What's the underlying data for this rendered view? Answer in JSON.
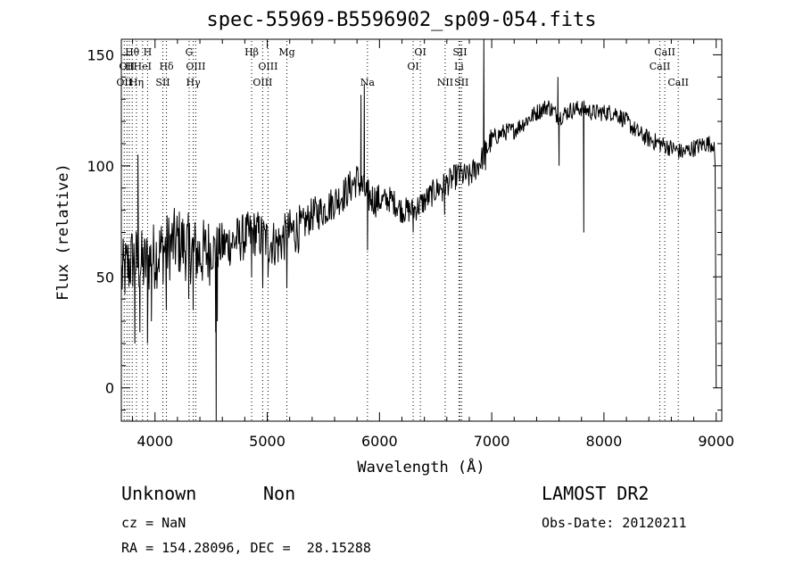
{
  "chart_data": {
    "type": "line",
    "title": "spec-55969-B5596902_sp09-054.fits",
    "xlabel": "Wavelength (Å)",
    "ylabel": "Flux (relative)",
    "xlim": [
      3700,
      9050
    ],
    "ylim": [
      -15,
      157
    ],
    "xticks": [
      4000,
      5000,
      6000,
      7000,
      8000,
      9000
    ],
    "yticks": [
      0,
      50,
      100,
      150
    ],
    "grid": false,
    "series_color": "#000000",
    "continuum": {
      "x": [
        3700,
        3800,
        3900,
        4000,
        4100,
        4200,
        4300,
        4400,
        4500,
        4600,
        4700,
        4800,
        4900,
        5000,
        5100,
        5200,
        5300,
        5400,
        5500,
        5600,
        5700,
        5800,
        5900,
        6000,
        6100,
        6200,
        6300,
        6400,
        6500,
        6600,
        6700,
        6800,
        6900,
        7000,
        7100,
        7200,
        7300,
        7400,
        7500,
        7600,
        7700,
        7800,
        7900,
        8000,
        8100,
        8200,
        8300,
        8400,
        8500,
        8600,
        8700,
        8800,
        8900,
        9000
      ],
      "y": [
        50,
        58,
        55,
        60,
        63,
        66,
        63,
        60,
        62,
        64,
        66,
        68,
        70,
        66,
        65,
        70,
        72,
        78,
        80,
        84,
        88,
        94,
        86,
        84,
        85,
        80,
        80,
        84,
        89,
        92,
        96,
        95,
        102,
        112,
        115,
        116,
        120,
        124,
        127,
        122,
        125,
        126,
        124,
        124,
        124,
        120,
        115,
        112,
        110,
        108,
        106,
        108,
        110,
        110
      ]
    },
    "features": [
      {
        "x": 3820,
        "y": 20
      },
      {
        "x": 3848,
        "y": 105
      },
      {
        "x": 3865,
        "y": 25
      },
      {
        "x": 3933,
        "y": 20
      },
      {
        "x": 3968,
        "y": 30
      },
      {
        "x": 4101,
        "y": 35
      },
      {
        "x": 4300,
        "y": 40
      },
      {
        "x": 4340,
        "y": 35
      },
      {
        "x": 4540,
        "y": 25
      },
      {
        "x": 4545,
        "y": -15
      },
      {
        "x": 4555,
        "y": 30
      },
      {
        "x": 4861,
        "y": 50
      },
      {
        "x": 4960,
        "y": 45
      },
      {
        "x": 5007,
        "y": 50
      },
      {
        "x": 5175,
        "y": 45
      },
      {
        "x": 5835,
        "y": 132
      },
      {
        "x": 5865,
        "y": 137
      },
      {
        "x": 5893,
        "y": 62
      },
      {
        "x": 6300,
        "y": 70
      },
      {
        "x": 6560,
        "y": 84
      },
      {
        "x": 6580,
        "y": 78
      },
      {
        "x": 6930,
        "y": 157
      },
      {
        "x": 6945,
        "y": 98
      },
      {
        "x": 7590,
        "y": 140
      },
      {
        "x": 7600,
        "y": 100
      },
      {
        "x": 7820,
        "y": 70
      },
      {
        "x": 8990,
        "y": 100
      },
      {
        "x": 9000,
        "y": 0
      }
    ],
    "lines": [
      {
        "wave": 3726,
        "label": "OII",
        "row": 2
      },
      {
        "wave": 3750,
        "label": "OII",
        "row": 1
      },
      {
        "wave": 3771,
        "label": "H",
        "row": 1
      },
      {
        "wave": 3797,
        "label": "Hθ",
        "row": 0
      },
      {
        "wave": 3835,
        "label": "Hη",
        "row": 2
      },
      {
        "wave": 3889,
        "label": "HeI",
        "row": 1
      },
      {
        "wave": 3934,
        "label": "H",
        "row": 0
      },
      {
        "wave": 4070,
        "label": "SII",
        "row": 2
      },
      {
        "wave": 4102,
        "label": "Hδ",
        "row": 1
      },
      {
        "wave": 4304,
        "label": "G",
        "row": 0
      },
      {
        "wave": 4341,
        "label": "Hγ",
        "row": 2
      },
      {
        "wave": 4363,
        "label": "OIII",
        "row": 1
      },
      {
        "wave": 4861,
        "label": "Hβ",
        "row": 0
      },
      {
        "wave": 4959,
        "label": "OIII",
        "row": 2
      },
      {
        "wave": 5007,
        "label": "OIII",
        "row": 1
      },
      {
        "wave": 5175,
        "label": "Mg",
        "row": 0
      },
      {
        "wave": 5893,
        "label": "Na",
        "row": 2
      },
      {
        "wave": 6300,
        "label": "OI",
        "row": 1
      },
      {
        "wave": 6364,
        "label": "OI",
        "row": 0
      },
      {
        "wave": 6585,
        "label": "NII",
        "row": 2
      },
      {
        "wave": 6708,
        "label": "Li",
        "row": 1
      },
      {
        "wave": 6717,
        "label": "SII",
        "row": 0
      },
      {
        "wave": 6731,
        "label": "SII",
        "row": 2
      },
      {
        "wave": 8498,
        "label": "CaII",
        "row": 1
      },
      {
        "wave": 8542,
        "label": "CaII",
        "row": 0
      },
      {
        "wave": 8662,
        "label": "CaII",
        "row": 2
      }
    ]
  },
  "info": {
    "class": "Unknown",
    "subclass": "Non",
    "release": "LAMOST DR2",
    "cz": "cz = NaN",
    "obs_date": "Obs-Date: 20120211",
    "position": "RA = 154.28096, DEC =  28.15288"
  }
}
